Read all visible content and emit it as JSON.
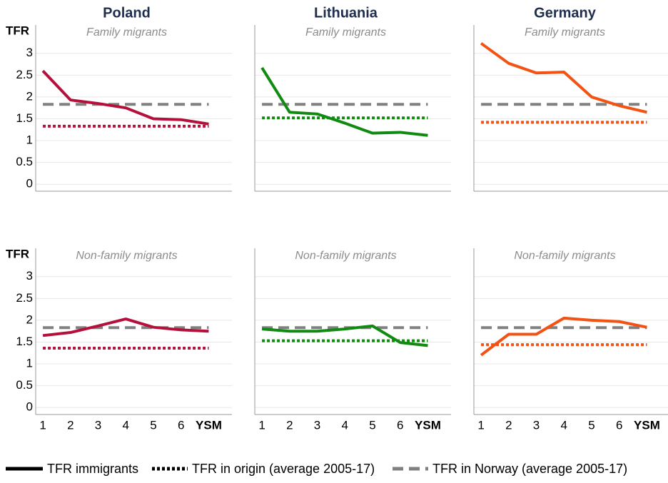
{
  "chart_data": {
    "type": "line",
    "columns": [
      "Poland",
      "Lithuania",
      "Germany"
    ],
    "rows": [
      "Family migrants",
      "Non-family migrants"
    ],
    "column_colors": [
      "#b5103c",
      "#118a11",
      "#f25314"
    ],
    "ylabel": "TFR",
    "x": [
      1,
      2,
      3,
      4,
      5,
      6,
      7
    ],
    "xlim": [
      0.74,
      7.84
    ],
    "xticks": [
      1,
      2,
      3,
      4,
      5,
      6,
      {
        "value": 7,
        "label": "YSM"
      }
    ],
    "ylim": [
      -0.16,
      3.65
    ],
    "yticks": [
      0,
      0.5,
      1,
      1.5,
      2,
      2.5,
      3
    ],
    "grid": true,
    "legend": "bottom",
    "series": [
      {
        "name": "TFR immigrants",
        "style": "solid",
        "values": [
          [
            [
              2.6,
              1.93,
              1.85,
              1.75,
              1.5,
              1.48,
              1.38
            ],
            [
              2.67,
              1.65,
              1.61,
              1.4,
              1.17,
              1.19,
              1.12
            ],
            [
              3.23,
              2.77,
              2.55,
              2.57,
              2.0,
              1.8,
              1.65
            ]
          ],
          [
            [
              1.65,
              1.72,
              1.87,
              2.03,
              1.84,
              1.78,
              1.75
            ],
            [
              1.8,
              1.75,
              1.75,
              1.8,
              1.87,
              1.49,
              1.42
            ],
            [
              1.2,
              1.68,
              1.68,
              2.05,
              2.0,
              1.97,
              1.84
            ]
          ]
        ]
      },
      {
        "name": "TFR in origin (average 2005-17)",
        "style": "dotted",
        "values": [
          [
            [
              1.33,
              1.33,
              1.33,
              1.33,
              1.33,
              1.33,
              1.33
            ],
            [
              1.52,
              1.52,
              1.52,
              1.52,
              1.52,
              1.52,
              1.52
            ],
            [
              1.42,
              1.42,
              1.42,
              1.42,
              1.42,
              1.42,
              1.42
            ]
          ],
          [
            [
              1.36,
              1.36,
              1.36,
              1.36,
              1.36,
              1.36,
              1.36
            ],
            [
              1.53,
              1.53,
              1.53,
              1.53,
              1.53,
              1.53,
              1.53
            ],
            [
              1.44,
              1.44,
              1.44,
              1.44,
              1.44,
              1.44,
              1.44
            ]
          ]
        ]
      },
      {
        "name": "TFR in Norway (average 2005-17)",
        "style": "dashed",
        "color": "#808080",
        "values": [
          [
            [
              1.83,
              1.83,
              1.83,
              1.83,
              1.83,
              1.83,
              1.83
            ],
            [
              1.83,
              1.83,
              1.83,
              1.83,
              1.83,
              1.83,
              1.83
            ],
            [
              1.83,
              1.83,
              1.83,
              1.83,
              1.83,
              1.83,
              1.83
            ]
          ],
          [
            [
              1.83,
              1.83,
              1.83,
              1.83,
              1.83,
              1.83,
              1.83
            ],
            [
              1.83,
              1.83,
              1.83,
              1.83,
              1.83,
              1.83,
              1.83
            ],
            [
              1.83,
              1.83,
              1.83,
              1.83,
              1.83,
              1.83,
              1.83
            ]
          ]
        ]
      }
    ]
  }
}
